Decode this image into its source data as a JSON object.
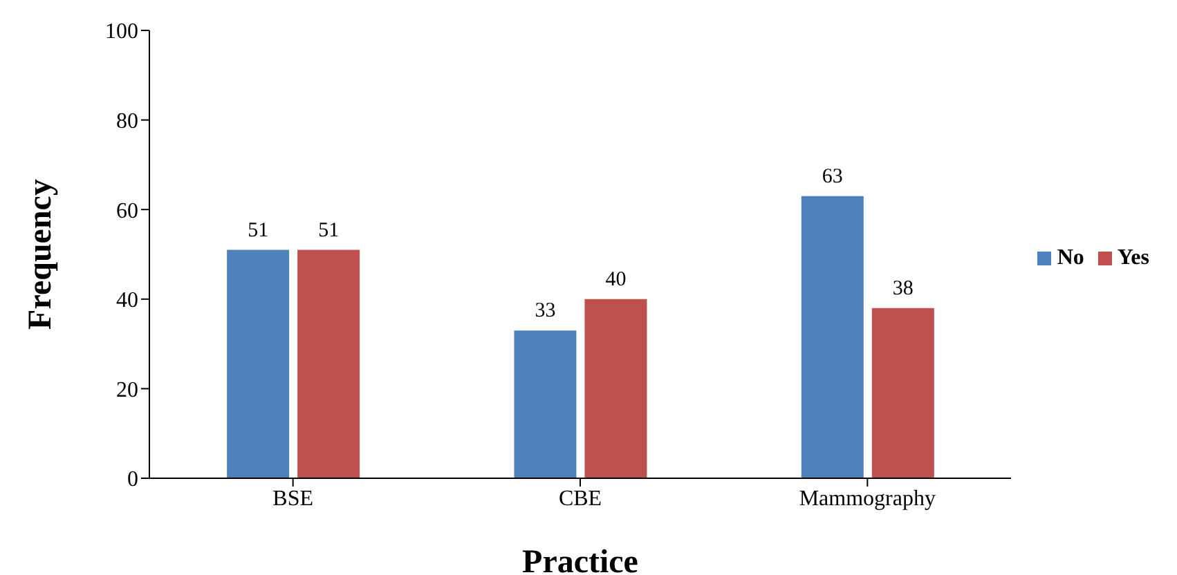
{
  "chart_data": {
    "type": "bar",
    "xlabel": "Practice",
    "ylabel": "Frequency",
    "categories": [
      "BSE",
      "CBE",
      "Mammography"
    ],
    "series": [
      {
        "name": "No",
        "color": "#4f81bd",
        "values": [
          51,
          33,
          63
        ]
      },
      {
        "name": "Yes",
        "color": "#c0504d",
        "values": [
          51,
          40,
          38
        ]
      }
    ],
    "ylim": [
      0,
      100
    ],
    "yticks": [
      0,
      20,
      40,
      60,
      80,
      100
    ],
    "grid": false,
    "legend": "right",
    "data_labels": true
  }
}
